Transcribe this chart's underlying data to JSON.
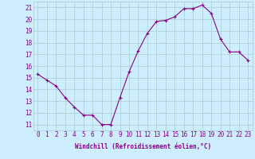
{
  "x": [
    0,
    1,
    2,
    3,
    4,
    5,
    6,
    7,
    8,
    9,
    10,
    11,
    12,
    13,
    14,
    15,
    16,
    17,
    18,
    19,
    20,
    21,
    22,
    23
  ],
  "y": [
    15.3,
    14.8,
    14.3,
    13.3,
    12.5,
    11.8,
    11.8,
    11.0,
    11.0,
    13.3,
    15.5,
    17.3,
    18.8,
    19.8,
    19.9,
    20.2,
    20.9,
    20.9,
    21.2,
    20.5,
    18.3,
    17.2,
    17.2,
    16.5
  ],
  "line_color": "#880088",
  "marker": "+",
  "marker_size": 3,
  "bg_color": "#cceeff",
  "grid_color": "#aacccc",
  "xlabel": "Windchill (Refroidissement éolien,°C)",
  "ylabel": "",
  "xlim": [
    -0.5,
    23.5
  ],
  "ylim": [
    10.5,
    21.5
  ],
  "yticks": [
    11,
    12,
    13,
    14,
    15,
    16,
    17,
    18,
    19,
    20,
    21
  ],
  "xticks": [
    0,
    1,
    2,
    3,
    4,
    5,
    6,
    7,
    8,
    9,
    10,
    11,
    12,
    13,
    14,
    15,
    16,
    17,
    18,
    19,
    20,
    21,
    22,
    23
  ],
  "tick_color": "#880088",
  "label_color": "#880088",
  "label_fontsize": 5.5,
  "tick_fontsize": 5.5,
  "linewidth": 0.8,
  "markeredgewidth": 0.8
}
